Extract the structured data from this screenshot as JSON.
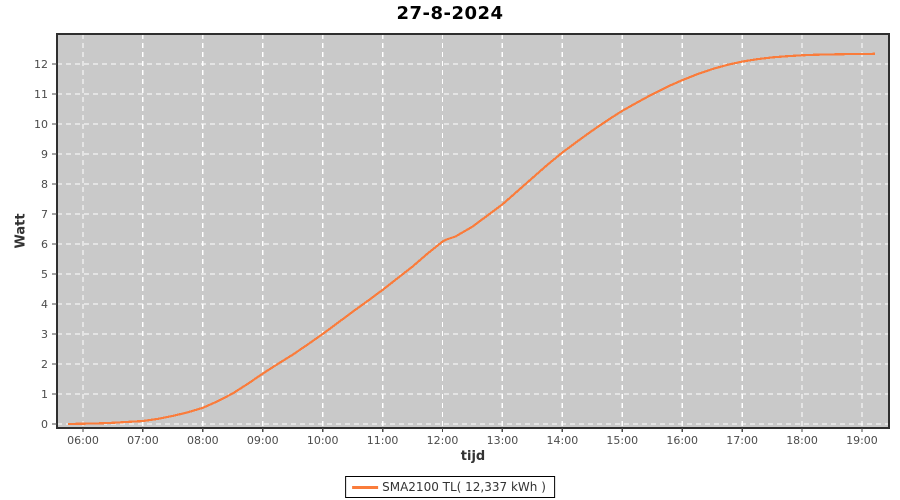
{
  "title": "27-8-2024",
  "legend": {
    "label": "SMA2100 TL( 12,337 kWh )"
  },
  "colors": {
    "plot_bg": "#c9c9c9",
    "grid": "#ffffff",
    "border": "#2f2f2f",
    "series": "#fa7c3b",
    "tick": "#4b4b4b",
    "tick_text": "#4b4b4b"
  },
  "chart_data": {
    "type": "line",
    "title": "27-8-2024",
    "xlabel": "tijd",
    "ylabel": "Watt",
    "x_ticks": [
      "06:00",
      "07:00",
      "08:00",
      "09:00",
      "10:00",
      "11:00",
      "12:00",
      "13:00",
      "14:00",
      "15:00",
      "16:00",
      "17:00",
      "18:00",
      "19:00"
    ],
    "y_ticks": [
      0,
      1,
      2,
      3,
      4,
      5,
      6,
      7,
      8,
      9,
      10,
      11,
      12
    ],
    "xlim_hours": [
      5.57,
      19.45
    ],
    "ylim": [
      -0.13,
      13.0
    ],
    "grid": "white-dashed",
    "legend_position": "bottom-center",
    "series": [
      {
        "name": "SMA2100 TL( 12,337 kWh )",
        "color": "#fa7c3b",
        "points": [
          [
            "05:45",
            0.0
          ],
          [
            "06:00",
            0.01
          ],
          [
            "06:15",
            0.02
          ],
          [
            "06:30",
            0.04
          ],
          [
            "06:45",
            0.07
          ],
          [
            "07:00",
            0.1
          ],
          [
            "07:15",
            0.17
          ],
          [
            "07:30",
            0.27
          ],
          [
            "07:45",
            0.39
          ],
          [
            "08:00",
            0.54
          ],
          [
            "08:15",
            0.76
          ],
          [
            "08:30",
            1.02
          ],
          [
            "08:45",
            1.34
          ],
          [
            "09:00",
            1.68
          ],
          [
            "09:15",
            2.0
          ],
          [
            "09:30",
            2.31
          ],
          [
            "09:45",
            2.65
          ],
          [
            "10:00",
            3.0
          ],
          [
            "10:15",
            3.37
          ],
          [
            "10:30",
            3.74
          ],
          [
            "10:45",
            4.1
          ],
          [
            "11:00",
            4.47
          ],
          [
            "11:15",
            4.86
          ],
          [
            "11:30",
            5.25
          ],
          [
            "11:45",
            5.68
          ],
          [
            "12:00",
            6.08
          ],
          [
            "12:04",
            6.15
          ],
          [
            "12:13",
            6.25
          ],
          [
            "12:30",
            6.58
          ],
          [
            "12:45",
            6.95
          ],
          [
            "13:00",
            7.32
          ],
          [
            "13:15",
            7.76
          ],
          [
            "13:30",
            8.2
          ],
          [
            "13:45",
            8.64
          ],
          [
            "14:00",
            9.05
          ],
          [
            "14:15",
            9.42
          ],
          [
            "14:30",
            9.78
          ],
          [
            "14:45",
            10.12
          ],
          [
            "15:00",
            10.44
          ],
          [
            "15:15",
            10.72
          ],
          [
            "15:30",
            10.99
          ],
          [
            "15:45",
            11.24
          ],
          [
            "16:00",
            11.46
          ],
          [
            "16:15",
            11.66
          ],
          [
            "16:30",
            11.83
          ],
          [
            "16:45",
            11.97
          ],
          [
            "17:00",
            12.08
          ],
          [
            "17:15",
            12.16
          ],
          [
            "17:30",
            12.22
          ],
          [
            "17:45",
            12.26
          ],
          [
            "18:00",
            12.29
          ],
          [
            "18:15",
            12.31
          ],
          [
            "18:30",
            12.32
          ],
          [
            "18:45",
            12.33
          ],
          [
            "19:00",
            12.33
          ],
          [
            "19:13",
            12.34
          ]
        ]
      }
    ]
  }
}
